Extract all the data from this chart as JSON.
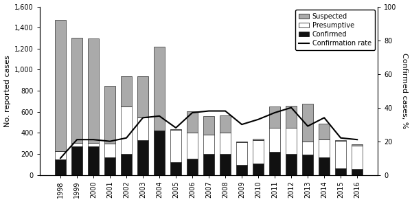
{
  "years": [
    1998,
    1999,
    2000,
    2001,
    2002,
    2003,
    2004,
    2005,
    2006,
    2007,
    2008,
    2009,
    2010,
    2011,
    2012,
    2013,
    2014,
    2015,
    2016
  ],
  "confirmed": [
    150,
    270,
    275,
    170,
    200,
    330,
    425,
    120,
    155,
    200,
    200,
    95,
    110,
    220,
    200,
    195,
    165,
    65,
    55
  ],
  "presumptive": [
    75,
    35,
    30,
    130,
    450,
    215,
    0,
    310,
    250,
    185,
    200,
    215,
    220,
    230,
    250,
    120,
    170,
    260,
    225
  ],
  "suspected": [
    1245,
    1000,
    995,
    545,
    285,
    390,
    795,
    5,
    200,
    175,
    165,
    5,
    15,
    200,
    210,
    360,
    155,
    5,
    10
  ],
  "confirmation_rate": [
    10,
    21,
    21,
    20,
    22,
    34,
    35,
    28,
    37,
    38,
    38,
    30,
    33,
    37,
    40,
    29,
    34,
    22,
    21
  ],
  "ylim_left": [
    0,
    1600
  ],
  "ylim_right": [
    0,
    100
  ],
  "bar_color_suspected": "#aaaaaa",
  "bar_color_presumptive": "#ffffff",
  "bar_color_confirmed": "#111111",
  "line_color": "#000000",
  "ylabel_left": "No. reported cases",
  "ylabel_right": "Confirmed cases, %",
  "yticks_left": [
    0,
    200,
    400,
    600,
    800,
    1000,
    1200,
    1400,
    1600
  ],
  "yticks_right": [
    0,
    20,
    40,
    60,
    80,
    100
  ],
  "legend_labels": [
    "Suspected",
    "Presumptive",
    "Confirmed",
    "Confirmation rate"
  ],
  "background_color": "#ffffff",
  "figwidth": 6.0,
  "figheight": 2.94,
  "dpi": 100
}
